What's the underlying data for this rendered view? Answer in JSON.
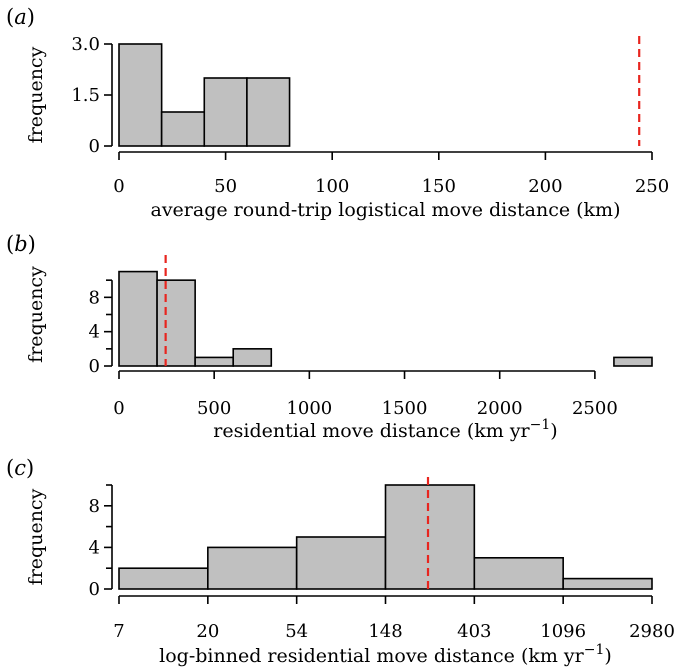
{
  "chart_data": [
    {
      "type": "bar",
      "panel_label": {
        "open": "(",
        "letter": "a",
        "close": ")"
      },
      "xlabel": "average round-trip logistical move distance (km)",
      "ylabel": "frequency",
      "bins": [
        {
          "x0": 0,
          "x1": 20,
          "count": 3
        },
        {
          "x0": 20,
          "x1": 40,
          "count": 1
        },
        {
          "x0": 40,
          "x1": 60,
          "count": 2
        },
        {
          "x0": 60,
          "x1": 80,
          "count": 2
        }
      ],
      "xlim": [
        0,
        250
      ],
      "ylim": [
        0,
        3
      ],
      "xticks": [
        0,
        50,
        100,
        150,
        200,
        250
      ],
      "xtick_labels": [
        "0",
        "50",
        "100",
        "150",
        "200",
        "250"
      ],
      "yticks": [
        0,
        1.5,
        3
      ],
      "ytick_labels": [
        "0",
        "1.5",
        "3.0"
      ],
      "reference_line": {
        "x": 244,
        "color": "#e8251f",
        "style": "dashed"
      },
      "bar_color": "#c0c0c0"
    },
    {
      "type": "bar",
      "panel_label": {
        "open": "(",
        "letter": "b",
        "close": ")"
      },
      "xlabel": "residential move distance (km yr",
      "xlabel_superscript": "−1",
      "xlabel_suffix": ")",
      "ylabel": "frequency",
      "bins": [
        {
          "x0": 0,
          "x1": 200,
          "count": 11
        },
        {
          "x0": 200,
          "x1": 400,
          "count": 10
        },
        {
          "x0": 400,
          "x1": 600,
          "count": 1
        },
        {
          "x0": 600,
          "x1": 800,
          "count": 2
        },
        {
          "x0": 800,
          "x1": 2600,
          "count": 0
        },
        {
          "x0": 2600,
          "x1": 2800,
          "count": 1
        }
      ],
      "xlim": [
        0,
        2800
      ],
      "ylim": [
        0,
        12
      ],
      "xticks": [
        0,
        500,
        1000,
        1500,
        2000,
        2500
      ],
      "xtick_labels": [
        "0",
        "500",
        "1000",
        "1500",
        "2000",
        "2500"
      ],
      "yticks": [
        0,
        4,
        8
      ],
      "ytick_labels": [
        "0",
        "4",
        "8"
      ],
      "yticks_minor": [
        2,
        6,
        10
      ],
      "reference_line": {
        "x": 245,
        "color": "#e8251f",
        "style": "dashed"
      },
      "bar_color": "#c0c0c0"
    },
    {
      "type": "bar",
      "panel_label": {
        "open": "(",
        "letter": "c",
        "close": ")"
      },
      "xlabel": "log-binned residential move distance (km yr",
      "xlabel_superscript": "−1",
      "xlabel_suffix": ")",
      "ylabel": "frequency",
      "scale": "log-binned",
      "bins": [
        {
          "x0": "7",
          "x1": "20",
          "count": 2
        },
        {
          "x0": "20",
          "x1": "54",
          "count": 4
        },
        {
          "x0": "54",
          "x1": "148",
          "count": 5
        },
        {
          "x0": "148",
          "x1": "403",
          "count": 10
        },
        {
          "x0": "403",
          "x1": "1096",
          "count": 3
        },
        {
          "x0": "1096",
          "x1": "2980",
          "count": 1
        }
      ],
      "xtick_labels": [
        "7",
        "20",
        "54",
        "148",
        "403",
        "1096",
        "2980"
      ],
      "ylim": [
        0,
        10
      ],
      "yticks": [
        0,
        4,
        8
      ],
      "ytick_labels": [
        "0",
        "4",
        "8"
      ],
      "yticks_minor": [
        2,
        6,
        10
      ],
      "reference_line": {
        "x": 245,
        "color": "#e8251f",
        "style": "dashed"
      },
      "bar_color": "#c0c0c0"
    }
  ]
}
